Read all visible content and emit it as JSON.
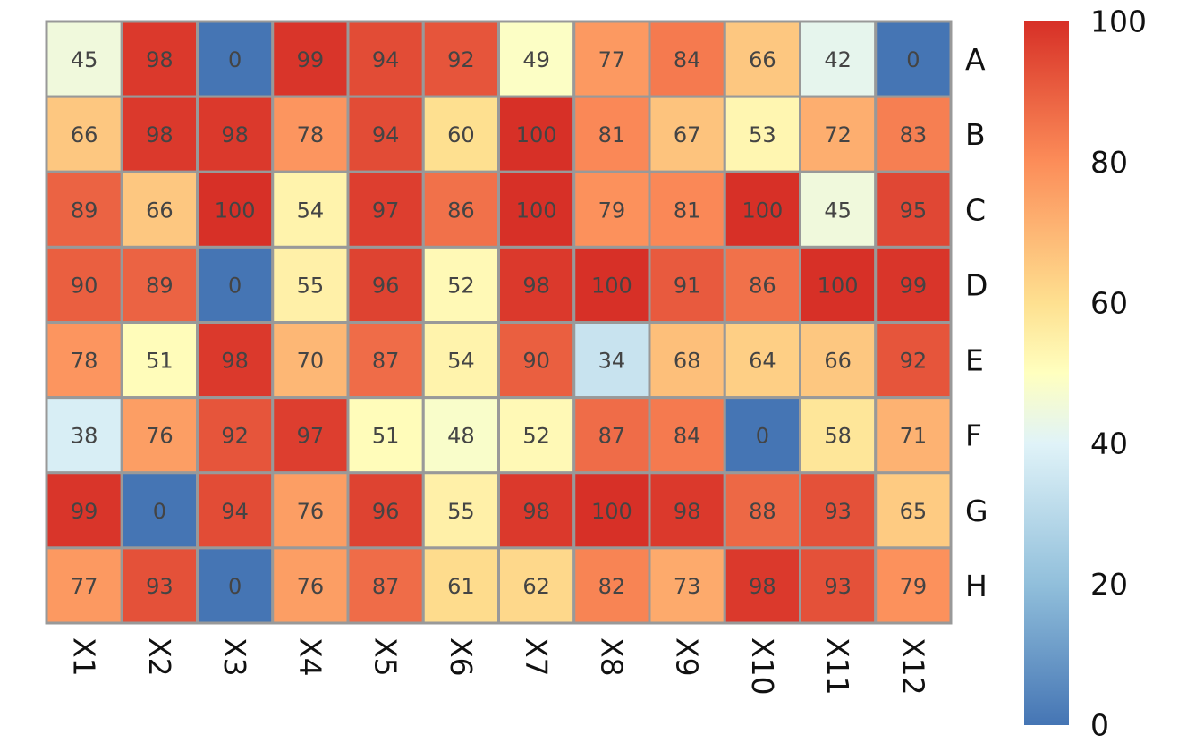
{
  "chart_data": {
    "type": "heatmap",
    "title": "",
    "xlabel": "",
    "ylabel": "",
    "x_categories": [
      "X1",
      "X2",
      "X3",
      "X4",
      "X5",
      "X6",
      "X7",
      "X8",
      "X9",
      "X10",
      "X11",
      "X12"
    ],
    "y_categories": [
      "A",
      "B",
      "C",
      "D",
      "E",
      "F",
      "G",
      "H"
    ],
    "values": [
      [
        45,
        98,
        0,
        99,
        94,
        92,
        49,
        77,
        84,
        66,
        42,
        0
      ],
      [
        66,
        98,
        98,
        78,
        94,
        60,
        100,
        81,
        67,
        53,
        72,
        83
      ],
      [
        89,
        66,
        100,
        54,
        97,
        86,
        100,
        79,
        81,
        100,
        45,
        95
      ],
      [
        90,
        89,
        0,
        55,
        96,
        52,
        98,
        100,
        91,
        86,
        100,
        99
      ],
      [
        78,
        51,
        98,
        70,
        87,
        54,
        90,
        34,
        68,
        64,
        66,
        92
      ],
      [
        38,
        76,
        92,
        97,
        51,
        48,
        52,
        87,
        84,
        0,
        58,
        71
      ],
      [
        99,
        0,
        94,
        76,
        96,
        55,
        98,
        100,
        98,
        88,
        93,
        65
      ],
      [
        77,
        93,
        0,
        76,
        87,
        61,
        62,
        82,
        73,
        98,
        93,
        79
      ]
    ],
    "value_range": [
      0,
      100
    ],
    "show_cell_labels": true,
    "colorscale": {
      "name": "RdYlBu reversed",
      "stops": [
        {
          "value": 0,
          "color": "#4575b4"
        },
        {
          "value": 20,
          "color": "#91bfdb"
        },
        {
          "value": 40,
          "color": "#e0f3f8"
        },
        {
          "value": 50,
          "color": "#ffffbf"
        },
        {
          "value": 60,
          "color": "#fee090"
        },
        {
          "value": 80,
          "color": "#fc8d59"
        },
        {
          "value": 100,
          "color": "#d73027"
        }
      ]
    },
    "colorbar": {
      "ticks": [
        0,
        20,
        40,
        60,
        80,
        100
      ],
      "placement": "right"
    },
    "x_axis_position": "bottom",
    "x_tick_rotation": "vertical",
    "y_axis_position": "right",
    "cell_border_color": "#999999"
  }
}
